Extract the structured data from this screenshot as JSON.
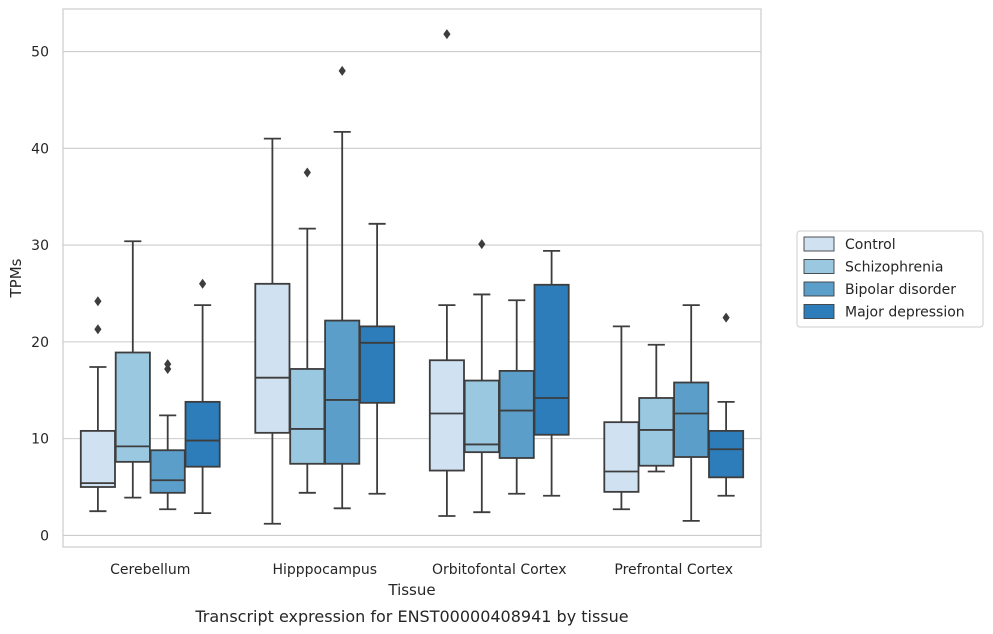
{
  "caption": "Transcript expression for ENST00000408941 by tissue",
  "chart_data": {
    "type": "box",
    "xlabel": "Tissue",
    "ylabel": "TPMs",
    "ylim": [
      -1.2,
      54.4
    ],
    "yticks": [
      0,
      10,
      20,
      30,
      40,
      50
    ],
    "grid": "horizontal",
    "legend_position": "right",
    "categories": [
      "Cerebellum",
      "Hipppocampus",
      "Orbitofontal Cortex",
      "Prefrontal Cortex"
    ],
    "series": [
      {
        "name": "Control",
        "color": "#d0e1f2",
        "boxes": [
          {
            "whislo": 2.5,
            "q1": 5.0,
            "med": 5.4,
            "q3": 10.8,
            "whishi": 17.4,
            "fliers": [
              21.3,
              24.2
            ]
          },
          {
            "whislo": 1.2,
            "q1": 10.6,
            "med": 16.3,
            "q3": 26.0,
            "whishi": 41.0,
            "fliers": []
          },
          {
            "whislo": 2.0,
            "q1": 6.7,
            "med": 12.6,
            "q3": 18.1,
            "whishi": 23.8,
            "fliers": [
              51.8
            ]
          },
          {
            "whislo": 2.7,
            "q1": 4.5,
            "med": 6.6,
            "q3": 11.7,
            "whishi": 21.6,
            "fliers": []
          }
        ]
      },
      {
        "name": "Schizophrenia",
        "color": "#9ac8e0",
        "boxes": [
          {
            "whislo": 3.9,
            "q1": 7.6,
            "med": 9.2,
            "q3": 18.9,
            "whishi": 30.4,
            "fliers": []
          },
          {
            "whislo": 4.4,
            "q1": 7.4,
            "med": 11.0,
            "q3": 17.2,
            "whishi": 31.7,
            "fliers": [
              37.5
            ]
          },
          {
            "whislo": 2.4,
            "q1": 8.6,
            "med": 9.4,
            "q3": 16.0,
            "whishi": 24.9,
            "fliers": [
              30.1
            ]
          },
          {
            "whislo": 6.6,
            "q1": 7.2,
            "med": 10.9,
            "q3": 14.2,
            "whishi": 19.7,
            "fliers": []
          }
        ]
      },
      {
        "name": "Bipolar disorder",
        "color": "#5b9ec9",
        "boxes": [
          {
            "whislo": 2.7,
            "q1": 4.4,
            "med": 5.7,
            "q3": 8.8,
            "whishi": 12.4,
            "fliers": [
              17.2,
              17.7
            ]
          },
          {
            "whislo": 2.8,
            "q1": 7.4,
            "med": 14.0,
            "q3": 22.2,
            "whishi": 41.7,
            "fliers": [
              48.0
            ]
          },
          {
            "whislo": 4.3,
            "q1": 8.0,
            "med": 12.9,
            "q3": 17.0,
            "whishi": 24.3,
            "fliers": []
          },
          {
            "whislo": 1.5,
            "q1": 8.1,
            "med": 12.6,
            "q3": 15.8,
            "whishi": 23.8,
            "fliers": []
          }
        ]
      },
      {
        "name": "Major depression",
        "color": "#2d7dbb",
        "boxes": [
          {
            "whislo": 2.3,
            "q1": 7.1,
            "med": 9.8,
            "q3": 13.8,
            "whishi": 23.8,
            "fliers": [
              26.0
            ]
          },
          {
            "whislo": 4.3,
            "q1": 13.7,
            "med": 19.9,
            "q3": 21.6,
            "whishi": 32.2,
            "fliers": []
          },
          {
            "whislo": 4.1,
            "q1": 10.4,
            "med": 14.2,
            "q3": 25.9,
            "whishi": 29.4,
            "fliers": []
          },
          {
            "whislo": 4.1,
            "q1": 6.0,
            "med": 8.9,
            "q3": 10.8,
            "whishi": 13.8,
            "fliers": [
              22.5
            ]
          }
        ]
      }
    ]
  }
}
